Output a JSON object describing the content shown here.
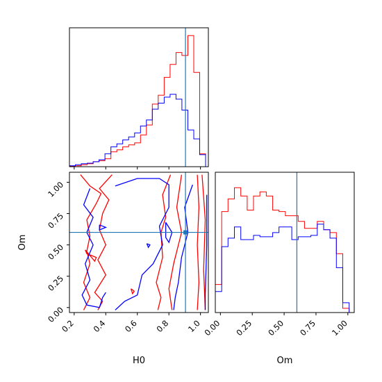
{
  "chart_data": {
    "type": "corner",
    "parameters": [
      "H0",
      "Om"
    ],
    "truth": {
      "H0": 0.905,
      "Om": 0.6
    },
    "colors": {
      "series_a": "#ff0000",
      "series_b": "#0000ff",
      "truth": "#1f77b4"
    },
    "panels": {
      "h0_hist": {
        "xlim": [
          0.17,
          1.05
        ],
        "bin_edges": [
          0.17,
          0.2075,
          0.245,
          0.2825,
          0.32,
          0.3575,
          0.395,
          0.4325,
          0.47,
          0.5075,
          0.545,
          0.5825,
          0.62,
          0.6575,
          0.695,
          0.7325,
          0.77,
          0.8075,
          0.845,
          0.8825,
          0.92,
          0.9575,
          0.995,
          1.0325
        ],
        "series": [
          {
            "values": [
              0.5,
              1,
              2,
              3,
              5,
              6,
              8,
              15,
              17,
              20,
              22,
              24,
              32,
              42,
              63,
              72,
              90,
              103,
              115,
              112,
              132,
              95,
              13
            ]
          },
          {
            "values": [
              1,
              2,
              3,
              3.5,
              5,
              7,
              13,
              20,
              23,
              27,
              30,
              34,
              41,
              47,
              58,
              64,
              70,
              73,
              68,
              57,
              37,
              28,
              12
            ]
          }
        ]
      },
      "om_hist": {
        "xlim": [
          -0.04,
          1.05
        ],
        "xticks": [
          "0.00",
          "0.25",
          "0.50",
          "0.75",
          "1.00"
        ],
        "xlabel": "Om",
        "bin_edges": [
          -0.04,
          0.01,
          0.06,
          0.11,
          0.16,
          0.21,
          0.26,
          0.31,
          0.36,
          0.41,
          0.46,
          0.51,
          0.56,
          0.61,
          0.66,
          0.71,
          0.76,
          0.81,
          0.86,
          0.91,
          0.96,
          1.01
        ],
        "series": [
          {
            "values": [
              0.2,
              0.72,
              0.81,
              0.89,
              0.83,
              0.73,
              0.83,
              0.86,
              0.83,
              0.73,
              0.72,
              0.69,
              0.69,
              0.65,
              0.6,
              0.6,
              0.65,
              0.59,
              0.57,
              0.42,
              0.03
            ]
          },
          {
            "values": [
              0.15,
              0.47,
              0.53,
              0.61,
              0.52,
              0.52,
              0.55,
              0.54,
              0.54,
              0.57,
              0.61,
              0.61,
              0.52,
              0.54,
              0.54,
              0.55,
              0.63,
              0.59,
              0.53,
              0.32,
              0.07
            ]
          }
        ]
      },
      "joint": {
        "xlim": [
          0.17,
          1.05
        ],
        "ylim": [
          -0.04,
          1.08
        ],
        "xticks": [
          "0.2",
          "0.4",
          "0.6",
          "0.8",
          "1.0"
        ],
        "yticks": [
          "0.00",
          "0.25",
          "0.50",
          "0.75",
          "1.00"
        ],
        "xlabel": "H0",
        "ylabel": "Om",
        "contours": [
          {
            "series": 0,
            "points": [
              [
                0.24,
                1.06
              ],
              [
                0.3,
                0.97
              ],
              [
                0.37,
                0.91
              ],
              [
                0.34,
                0.83
              ],
              [
                0.28,
                0.7
              ],
              [
                0.3,
                0.57
              ],
              [
                0.28,
                0.45
              ],
              [
                0.3,
                0.35
              ],
              [
                0.26,
                0.2
              ],
              [
                0.3,
                0.08
              ],
              [
                0.26,
                -0.02
              ]
            ]
          },
          {
            "series": 0,
            "points": [
              [
                0.44,
                1.06
              ],
              [
                0.36,
                0.95
              ],
              [
                0.42,
                0.86
              ],
              [
                0.38,
                0.75
              ],
              [
                0.36,
                0.62
              ],
              [
                0.4,
                0.5
              ],
              [
                0.35,
                0.38
              ],
              [
                0.4,
                0.26
              ],
              [
                0.33,
                0.12
              ],
              [
                0.38,
                0.05
              ],
              [
                0.35,
                -0.02
              ]
            ]
          },
          {
            "series": 0,
            "points": [
              [
                0.27,
                0.46
              ],
              [
                0.33,
                0.37
              ],
              [
                0.34,
                0.4
              ],
              [
                0.28,
                0.43
              ],
              [
                0.27,
                0.46
              ]
            ]
          },
          {
            "series": 0,
            "points": [
              [
                0.81,
                1.06
              ],
              [
                0.76,
                0.9
              ],
              [
                0.78,
                0.72
              ],
              [
                0.75,
                0.6
              ],
              [
                0.76,
                0.4
              ],
              [
                0.72,
                0.2
              ],
              [
                0.75,
                0.08
              ],
              [
                0.73,
                -0.02
              ]
            ]
          },
          {
            "series": 0,
            "points": [
              [
                0.88,
                1.06
              ],
              [
                0.85,
                0.8
              ],
              [
                0.88,
                0.6
              ],
              [
                0.83,
                0.35
              ],
              [
                0.8,
                0.15
              ],
              [
                0.82,
                -0.02
              ]
            ]
          },
          {
            "series": 0,
            "points": [
              [
                0.98,
                1.06
              ],
              [
                0.99,
                0.8
              ],
              [
                0.98,
                0.5
              ],
              [
                0.99,
                0.2
              ],
              [
                0.98,
                -0.02
              ]
            ]
          },
          {
            "series": 0,
            "points": [
              [
                1.01,
                1.06
              ],
              [
                1.03,
                0.7
              ],
              [
                1.02,
                0.3
              ],
              [
                1.03,
                -0.02
              ]
            ]
          },
          {
            "series": 0,
            "points": [
              [
                0.56,
                0.15
              ],
              [
                0.58,
                0.13
              ],
              [
                0.57,
                0.11
              ],
              [
                0.56,
                0.15
              ]
            ]
          },
          {
            "series": 1,
            "points": [
              [
                0.3,
                0.95
              ],
              [
                0.26,
                0.82
              ],
              [
                0.32,
                0.72
              ],
              [
                0.28,
                0.6
              ],
              [
                0.32,
                0.5
              ],
              [
                0.27,
                0.35
              ],
              [
                0.3,
                0.22
              ],
              [
                0.25,
                0.1
              ],
              [
                0.28,
                0.02
              ],
              [
                0.36,
                0.0
              ],
              [
                0.38,
                0.08
              ],
              [
                0.4,
                0.12
              ]
            ]
          },
          {
            "series": 1,
            "points": [
              [
                0.46,
                0.97
              ],
              [
                0.6,
                1.03
              ],
              [
                0.74,
                1.03
              ],
              [
                0.8,
                0.98
              ],
              [
                0.8,
                0.8
              ],
              [
                0.74,
                0.65
              ],
              [
                0.76,
                0.5
              ],
              [
                0.7,
                0.35
              ],
              [
                0.63,
                0.26
              ],
              [
                0.6,
                0.1
              ],
              [
                0.52,
                0.05
              ],
              [
                0.46,
                -0.02
              ]
            ]
          },
          {
            "series": 1,
            "points": [
              [
                0.95,
                0.98
              ],
              [
                0.9,
                0.8
              ],
              [
                0.92,
                0.6
              ],
              [
                0.88,
                0.4
              ],
              [
                0.86,
                0.2
              ],
              [
                0.84,
                0.08
              ],
              [
                0.83,
                -0.02
              ]
            ]
          },
          {
            "series": 1,
            "points": [
              [
                1.04,
                0.9
              ],
              [
                1.04,
                0.5
              ],
              [
                1.03,
                0.1
              ],
              [
                1.03,
                -0.02
              ]
            ]
          },
          {
            "series": 1,
            "points": [
              [
                0.36,
                0.66
              ],
              [
                0.4,
                0.64
              ],
              [
                0.36,
                0.62
              ],
              [
                0.36,
                0.66
              ]
            ]
          },
          {
            "series": 1,
            "points": [
              [
                0.66,
                0.51
              ],
              [
                0.68,
                0.5
              ],
              [
                0.67,
                0.48
              ],
              [
                0.66,
                0.51
              ]
            ]
          },
          {
            "series": 1,
            "points": [
              [
                0.78,
                0.68
              ],
              [
                0.82,
                0.6
              ],
              [
                0.8,
                0.52
              ],
              [
                0.78,
                0.56
              ],
              [
                0.78,
                0.68
              ]
            ]
          }
        ]
      }
    }
  }
}
